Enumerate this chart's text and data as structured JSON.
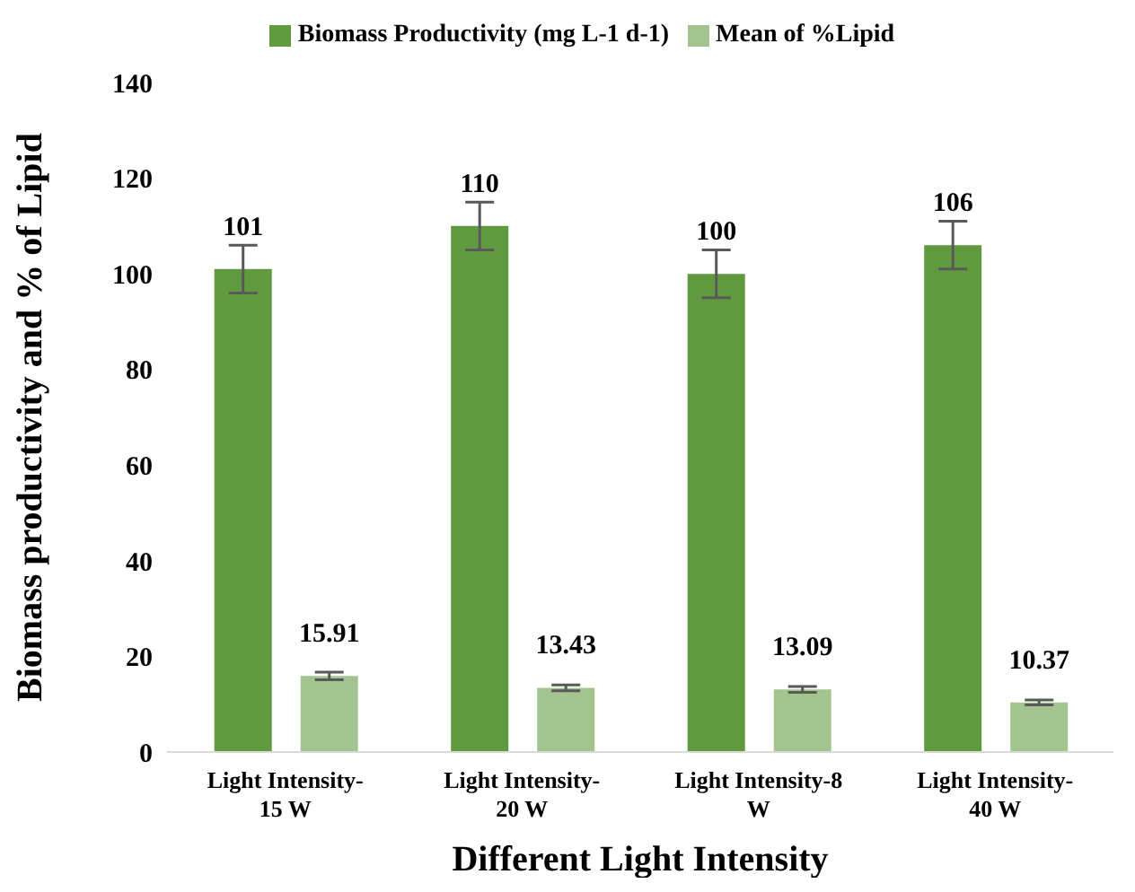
{
  "chart_data": {
    "type": "bar",
    "xlabel": "Different Light Intensity",
    "ylabel": "Biomass productivity and % of Lipid",
    "categories": [
      "Light Intensity-15 W",
      "Light Intensity-20 W",
      "Light Intensity-8 W",
      "Light Intensity-40 W"
    ],
    "series": [
      {
        "name": "Biomass Productivity  (mg L-1 d-1)",
        "color": "#5f9a3f",
        "values": [
          101,
          110,
          100,
          106
        ],
        "errors": [
          5,
          5,
          5,
          5
        ]
      },
      {
        "name": "Mean of %Lipid",
        "color": "#a2c590",
        "values": [
          15.91,
          13.43,
          13.09,
          10.37
        ],
        "errors": [
          0.8,
          0.6,
          0.6,
          0.5
        ]
      }
    ],
    "ylim": [
      0,
      140
    ],
    "yticks": [
      0,
      20,
      40,
      60,
      80,
      100,
      120,
      140
    ],
    "grid": false,
    "legend": "top",
    "data_labels": true
  }
}
